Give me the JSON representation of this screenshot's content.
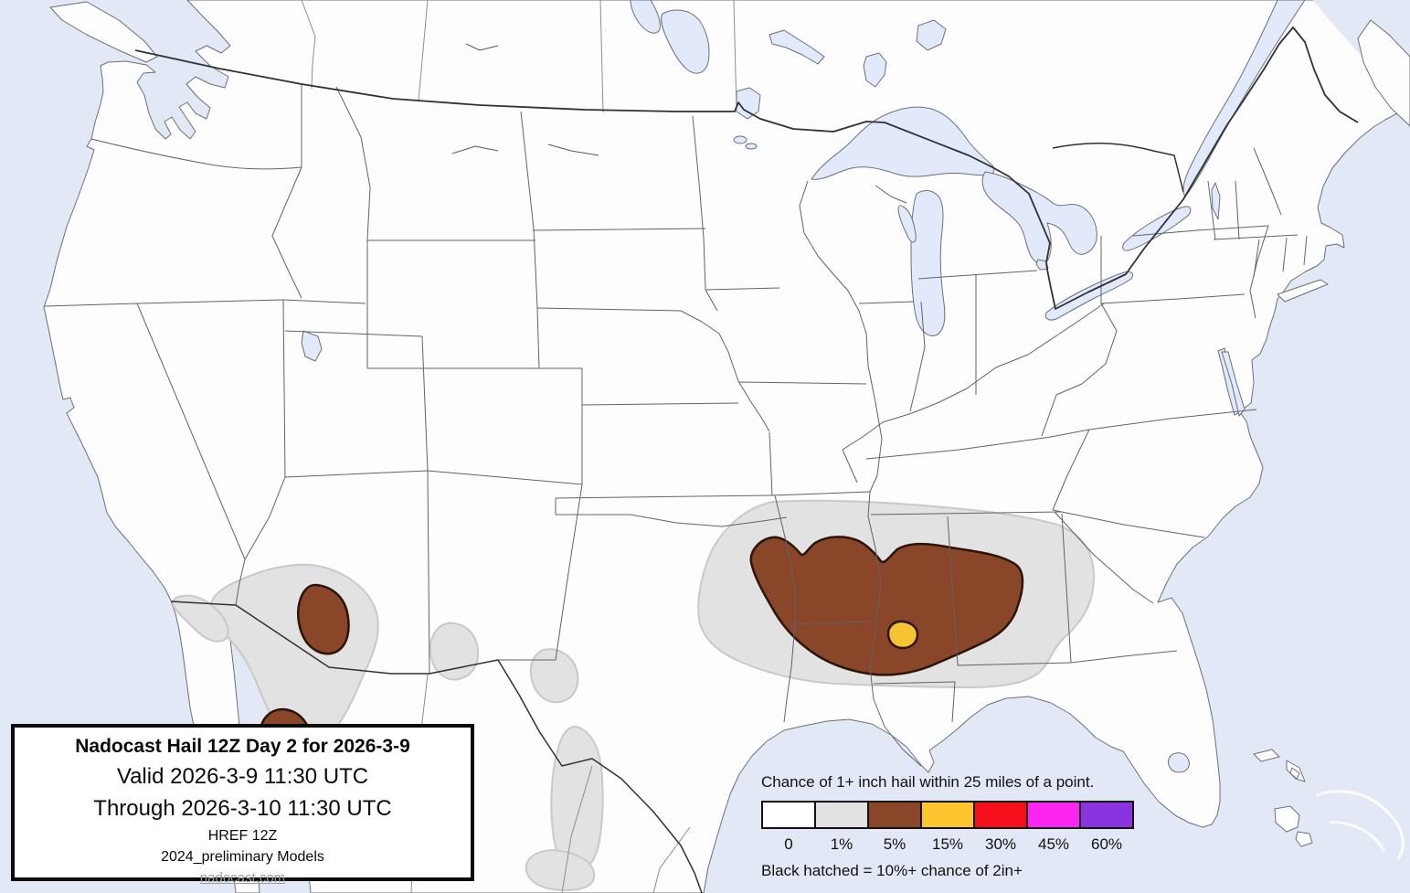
{
  "title_box": {
    "title": "Nadocast Hail 12Z Day 2 for 2026-3-9",
    "valid_line": "Valid 2026-3-9 11:30 UTC",
    "through_line": "Through 2026-3-10 11:30 UTC",
    "model_line": "HREF 12Z",
    "models_note": "2024_preliminary Models",
    "website": "nadocast.com"
  },
  "legend": {
    "title": "Chance of 1+ inch hail within 25 miles of a point.",
    "footnote": "Black hatched = 10%+ chance of 2in+",
    "bins": [
      {
        "label": "0",
        "color": "#ffffff"
      },
      {
        "label": "1%",
        "color": "#e2e2e2"
      },
      {
        "label": "5%",
        "color": "#8a4629"
      },
      {
        "label": "15%",
        "color": "#fdc42d"
      },
      {
        "label": "30%",
        "color": "#f50f1a"
      },
      {
        "label": "45%",
        "color": "#fb24f0"
      },
      {
        "label": "60%",
        "color": "#8934e0"
      }
    ]
  },
  "map": {
    "region": "Contiguous United States with southern Canada and northern Mexico",
    "colors": {
      "ocean": "#e2e8f5",
      "land": "#fdfdfe",
      "lakes": "#e2e9fa",
      "coast_stroke": "#6b7076",
      "state_border": "#5f646a",
      "national_border": "#2f3133",
      "province_border": "#8a8f94",
      "contour_1pct_fill": "#e2e2e2",
      "contour_1pct_stroke": "#c9c9c9",
      "contour_5pct_fill": "#8a4629",
      "contour_dark_stroke": "#2b1408",
      "contour_15pct_fill": "#f6c335"
    },
    "contours": {
      "quantity": "percent chance of 1+ inch hail within 25 miles of a point",
      "levels": [
        {
          "level": "1%",
          "areas": [
            "Large area from eastern Oklahoma/Texas across Arkansas, Louisiana and Mississippi into west Alabama and Tennessee",
            "Southeast Arizona into northwest Mexico",
            "New Mexico / Texas border area",
            "West Texas",
            "Big Bend region of northern Mexico",
            "Northeastern Mexico"
          ]
        },
        {
          "level": "5%",
          "areas": [
            "Arkansas, northern Louisiana and Mississippi",
            "East-central Arizona",
            "Sonora, Mexico"
          ]
        },
        {
          "level": "15%",
          "areas": [
            "Small spot in central Mississippi"
          ]
        }
      ]
    }
  }
}
